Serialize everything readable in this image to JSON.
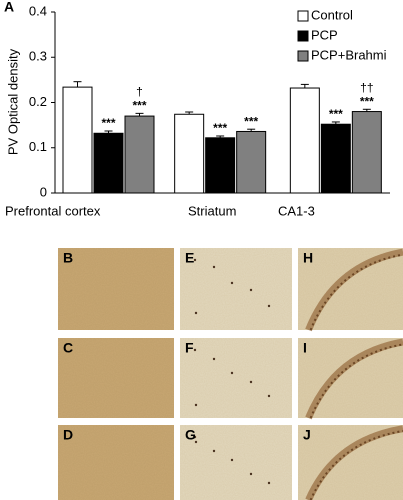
{
  "panel_label": "A",
  "chart_data": {
    "type": "bar",
    "ylabel": "PV Optical density",
    "categories": [
      "Prefrontal cortex",
      "Striatum",
      "CA1-3"
    ],
    "ylim": [
      0,
      0.4
    ],
    "yticks": [
      0,
      0.1,
      0.2,
      0.3,
      0.4
    ],
    "legend": "top-right",
    "series": [
      {
        "name": "Control",
        "color": "#ffffff",
        "values": [
          0.234,
          0.174,
          0.232
        ],
        "errors": [
          0.012,
          0.005,
          0.008
        ]
      },
      {
        "name": "PCP",
        "color": "#000000",
        "values": [
          0.132,
          0.122,
          0.152
        ],
        "errors": [
          0.005,
          0.004,
          0.005
        ],
        "significance": [
          "***",
          "***",
          "***"
        ]
      },
      {
        "name": "PCP+Brahmi",
        "color": "#808080",
        "values": [
          0.17,
          0.136,
          0.18
        ],
        "errors": [
          0.006,
          0.005,
          0.005
        ],
        "significance": [
          "***",
          "***",
          "***"
        ],
        "vs_pcp": [
          "†",
          null,
          "††"
        ]
      }
    ]
  },
  "image_panels": [
    {
      "label": "B"
    },
    {
      "label": "C"
    },
    {
      "label": "D"
    },
    {
      "label": "E"
    },
    {
      "label": "F"
    },
    {
      "label": "G"
    },
    {
      "label": "H"
    },
    {
      "label": "I"
    },
    {
      "label": "J"
    }
  ]
}
